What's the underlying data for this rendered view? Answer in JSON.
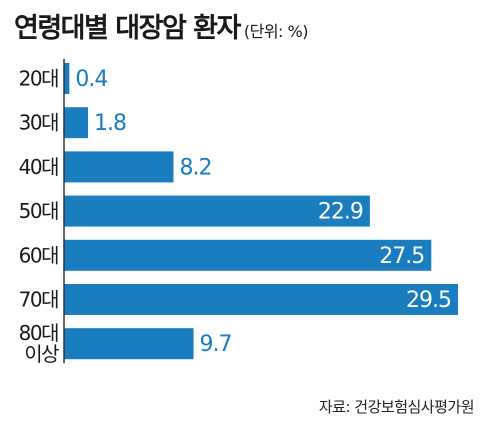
{
  "header": {
    "title": "연령대별 대장암 환자",
    "unit": "(단위: %)"
  },
  "source": "자료: 건강보험심사평가원",
  "colors": {
    "bar": "#1a7dbf",
    "value_inside": "#ffffff",
    "value_outside": "#1a7dbf",
    "axis": "#333333"
  },
  "chart_data": {
    "type": "bar",
    "orientation": "horizontal",
    "title": "연령대별 대장암 환자",
    "unit": "%",
    "categories": [
      [
        "20대"
      ],
      [
        "30대"
      ],
      [
        "40대"
      ],
      [
        "50대"
      ],
      [
        "60대"
      ],
      [
        "70대"
      ],
      [
        "80대",
        "이상"
      ]
    ],
    "values": [
      0.4,
      1.8,
      8.2,
      22.9,
      27.5,
      29.5,
      9.7
    ],
    "value_labels": [
      "0.4",
      "1.8",
      "8.2",
      "22.9",
      "27.5",
      "29.5",
      "9.7"
    ],
    "xlim": [
      0,
      29.5
    ],
    "grid": false,
    "legend": "none"
  }
}
